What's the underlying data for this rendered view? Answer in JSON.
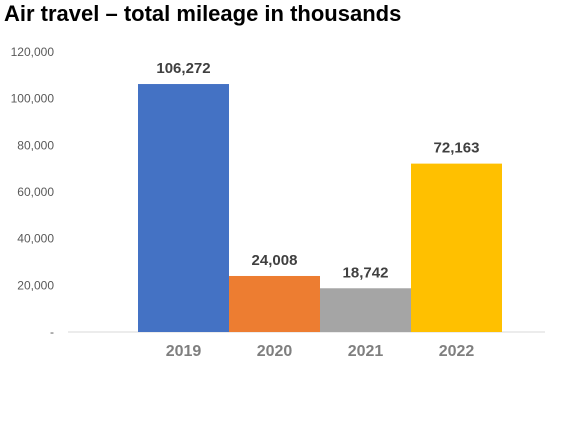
{
  "chart_data": {
    "type": "bar",
    "title": "Air travel – total mileage in thousands",
    "categories": [
      "2019",
      "2020",
      "2021",
      "2022"
    ],
    "values": [
      106272,
      24008,
      18742,
      72163
    ],
    "data_labels": [
      "106,272",
      "24,008",
      "18,742",
      "72,163"
    ],
    "colors": [
      "#4472c4",
      "#ed7d31",
      "#a5a5a5",
      "#ffc000"
    ],
    "ylim": [
      0,
      120000
    ],
    "yticks": [
      0,
      20000,
      40000,
      60000,
      80000,
      100000,
      120000
    ],
    "ytick_labels": [
      "-",
      "20,000",
      "40,000",
      "60,000",
      "80,000",
      "100,000",
      "120,000"
    ],
    "xlabel": "",
    "ylabel": "",
    "grid": false,
    "legend": "none"
  }
}
